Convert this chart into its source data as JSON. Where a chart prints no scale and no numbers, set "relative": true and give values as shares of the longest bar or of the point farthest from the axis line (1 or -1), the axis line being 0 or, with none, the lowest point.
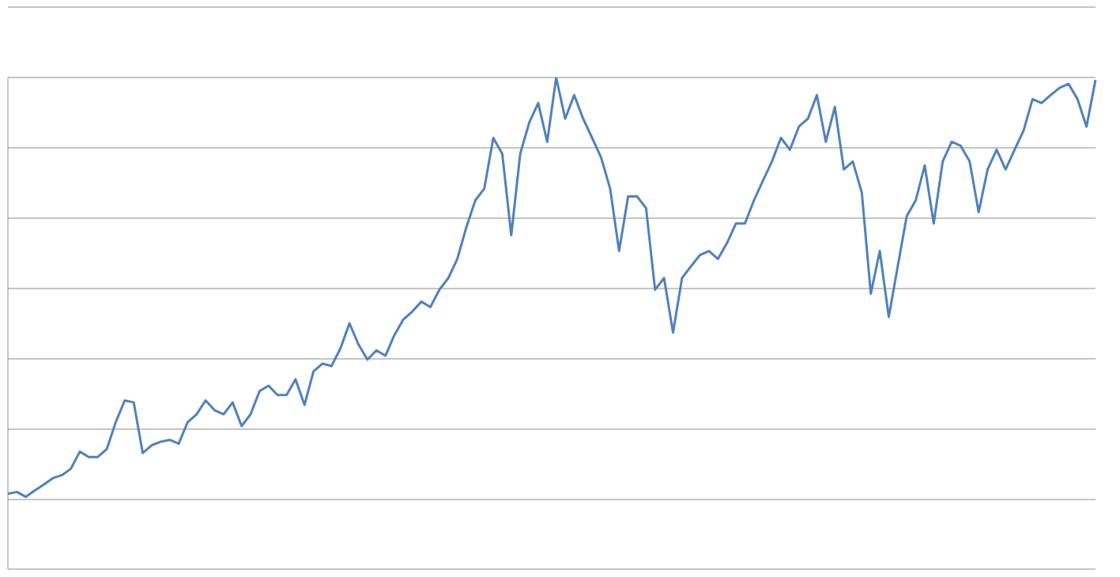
{
  "chart_data": {
    "type": "line",
    "relative": true,
    "grid": "y",
    "color": "#4f81bd",
    "marker": "none",
    "line_style": "solid",
    "categories": [
      null,
      null,
      null,
      null,
      null,
      null,
      null,
      null,
      null,
      null,
      null,
      null,
      null,
      null,
      null,
      null,
      null,
      null,
      null,
      null,
      null,
      null,
      null,
      null,
      null,
      null,
      null,
      null,
      null,
      null,
      null,
      null,
      null,
      null,
      null,
      null,
      null,
      null,
      null,
      null,
      null,
      null,
      null,
      null,
      null,
      null,
      null,
      null,
      null,
      null,
      null,
      null,
      null,
      null,
      null,
      null,
      null,
      null,
      null,
      null,
      null,
      null,
      null,
      null,
      null,
      null,
      null,
      null,
      null,
      null,
      null,
      null,
      null,
      null,
      null,
      null,
      null,
      null,
      null,
      null,
      null,
      null,
      null,
      null,
      null,
      null,
      null,
      null,
      null,
      null,
      null,
      null,
      null,
      null,
      null,
      null,
      null,
      null,
      null,
      null,
      null,
      null,
      null,
      null,
      null,
      null,
      null,
      null,
      null,
      null,
      null,
      null,
      null,
      null,
      null,
      null,
      null,
      null,
      null,
      null,
      null,
      null
    ],
    "values": [
      0.153,
      0.157,
      0.147,
      0.16,
      0.172,
      0.185,
      0.191,
      0.204,
      0.239,
      0.228,
      0.228,
      0.244,
      0.299,
      0.343,
      0.339,
      0.236,
      0.252,
      0.259,
      0.263,
      0.255,
      0.299,
      0.315,
      0.343,
      0.323,
      0.315,
      0.339,
      0.291,
      0.315,
      0.362,
      0.373,
      0.354,
      0.354,
      0.386,
      0.334,
      0.402,
      0.418,
      0.413,
      0.449,
      0.5,
      0.457,
      0.426,
      0.445,
      0.434,
      0.476,
      0.508,
      0.524,
      0.544,
      0.533,
      0.568,
      0.592,
      0.631,
      0.695,
      0.75,
      0.774,
      0.877,
      0.845,
      0.679,
      0.845,
      0.908,
      0.948,
      0.869,
      1,
      0.916,
      0.964,
      0.916,
      0.877,
      0.837,
      0.774,
      0.647,
      0.758,
      0.758,
      0.734,
      0.568,
      0.592,
      0.481,
      0.592,
      0.616,
      0.639,
      0.647,
      0.631,
      0.663,
      0.703,
      0.703,
      0.75,
      0.79,
      0.829,
      0.877,
      0.853,
      0.9,
      0.916,
      0.964,
      0.869,
      0.94,
      0.813,
      0.829,
      0.766,
      0.56,
      0.647,
      0.513,
      0.616,
      0.718,
      0.75,
      0.821,
      0.703,
      0.829,
      0.869,
      0.861,
      0.829,
      0.726,
      0.813,
      0.853,
      0.813,
      0.853,
      0.892,
      0.956,
      0.948,
      0.964,
      0.979,
      0.987,
      0.956,
      0.9,
      0.995
    ]
  }
}
